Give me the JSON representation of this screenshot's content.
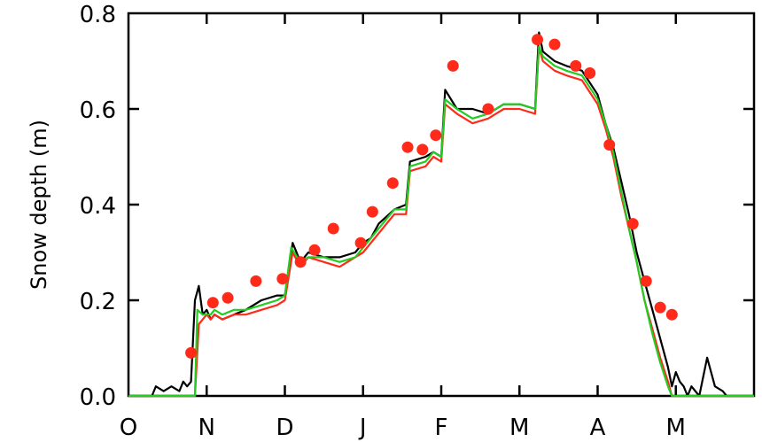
{
  "chart_data": {
    "type": "line",
    "ylabel": "Snow depth  (m)",
    "xlabel": "",
    "ylim": [
      0.0,
      0.8
    ],
    "xlim": [
      0,
      8.0
    ],
    "x_ticks": [
      {
        "value": 0,
        "label": "O"
      },
      {
        "value": 1,
        "label": "N"
      },
      {
        "value": 2,
        "label": "D"
      },
      {
        "value": 3,
        "label": "J"
      },
      {
        "value": 4,
        "label": "F"
      },
      {
        "value": 5,
        "label": "M"
      },
      {
        "value": 6,
        "label": "A"
      },
      {
        "value": 7,
        "label": "M"
      }
    ],
    "y_ticks": [
      {
        "value": 0.0,
        "label": "0.0"
      },
      {
        "value": 0.2,
        "label": "0.2"
      },
      {
        "value": 0.4,
        "label": "0.4"
      },
      {
        "value": 0.6,
        "label": "0.6"
      },
      {
        "value": 0.8,
        "label": "0.8"
      }
    ],
    "series": [
      {
        "color": "#000000",
        "style": "line",
        "x": [
          0.0,
          0.3,
          0.35,
          0.45,
          0.55,
          0.65,
          0.7,
          0.75,
          0.8,
          0.85,
          0.9,
          0.95,
          1.0,
          1.05,
          1.1,
          1.2,
          1.35,
          1.5,
          1.7,
          1.9,
          2.0,
          2.1,
          2.2,
          2.3,
          2.5,
          2.7,
          2.9,
          3.0,
          3.1,
          3.2,
          3.4,
          3.55,
          3.6,
          3.8,
          3.9,
          4.0,
          4.05,
          4.2,
          4.4,
          4.6,
          4.8,
          5.0,
          5.2,
          5.25,
          5.3,
          5.45,
          5.6,
          5.8,
          6.0,
          6.1,
          6.2,
          6.3,
          6.4,
          6.5,
          6.6,
          6.7,
          6.8,
          6.9,
          6.95,
          7.0,
          7.05,
          7.1,
          7.15,
          7.2,
          7.3,
          7.4,
          7.5,
          7.6,
          7.65,
          8.0
        ],
        "y": [
          0.0,
          0.0,
          0.02,
          0.01,
          0.02,
          0.01,
          0.03,
          0.02,
          0.03,
          0.2,
          0.23,
          0.17,
          0.18,
          0.16,
          0.17,
          0.16,
          0.17,
          0.18,
          0.2,
          0.21,
          0.21,
          0.32,
          0.28,
          0.3,
          0.29,
          0.29,
          0.3,
          0.32,
          0.33,
          0.36,
          0.39,
          0.4,
          0.49,
          0.5,
          0.51,
          0.5,
          0.64,
          0.6,
          0.6,
          0.59,
          0.61,
          0.61,
          0.6,
          0.76,
          0.72,
          0.7,
          0.69,
          0.68,
          0.63,
          0.57,
          0.52,
          0.45,
          0.38,
          0.3,
          0.24,
          0.18,
          0.12,
          0.06,
          0.02,
          0.05,
          0.03,
          0.02,
          0.0,
          0.02,
          0.0,
          0.08,
          0.02,
          0.01,
          0.0,
          0.0
        ]
      },
      {
        "color": "#ff2a1a",
        "style": "line",
        "x": [
          0.0,
          0.85,
          0.9,
          0.95,
          1.0,
          1.05,
          1.1,
          1.2,
          1.35,
          1.5,
          1.7,
          1.9,
          2.0,
          2.1,
          2.2,
          2.3,
          2.5,
          2.7,
          2.9,
          3.0,
          3.1,
          3.2,
          3.4,
          3.55,
          3.6,
          3.8,
          3.9,
          4.0,
          4.05,
          4.2,
          4.4,
          4.6,
          4.8,
          5.0,
          5.2,
          5.25,
          5.3,
          5.45,
          5.6,
          5.8,
          6.0,
          6.1,
          6.2,
          6.3,
          6.4,
          6.5,
          6.6,
          6.7,
          6.8,
          6.9,
          6.95,
          7.0,
          8.0
        ],
        "y": [
          0.0,
          0.0,
          0.15,
          0.16,
          0.17,
          0.16,
          0.17,
          0.16,
          0.17,
          0.17,
          0.18,
          0.19,
          0.2,
          0.3,
          0.27,
          0.29,
          0.28,
          0.27,
          0.29,
          0.3,
          0.32,
          0.34,
          0.38,
          0.38,
          0.47,
          0.48,
          0.5,
          0.49,
          0.61,
          0.59,
          0.57,
          0.58,
          0.6,
          0.6,
          0.59,
          0.73,
          0.7,
          0.68,
          0.67,
          0.66,
          0.61,
          0.56,
          0.5,
          0.42,
          0.35,
          0.28,
          0.2,
          0.14,
          0.08,
          0.03,
          0.0,
          0.0,
          0.0
        ]
      },
      {
        "color": "#22cc22",
        "style": "line",
        "x": [
          0.0,
          0.85,
          0.88,
          0.95,
          1.0,
          1.05,
          1.1,
          1.2,
          1.35,
          1.5,
          1.7,
          1.9,
          2.0,
          2.08,
          2.2,
          2.3,
          2.5,
          2.7,
          2.9,
          3.0,
          3.1,
          3.2,
          3.4,
          3.55,
          3.6,
          3.8,
          3.9,
          4.0,
          4.05,
          4.2,
          4.4,
          4.6,
          4.8,
          5.0,
          5.2,
          5.25,
          5.3,
          5.45,
          5.6,
          5.8,
          6.0,
          6.1,
          6.2,
          6.3,
          6.4,
          6.5,
          6.6,
          6.7,
          6.8,
          6.9,
          6.95,
          7.0,
          8.0
        ],
        "y": [
          0.0,
          0.0,
          0.18,
          0.17,
          0.17,
          0.17,
          0.18,
          0.17,
          0.18,
          0.18,
          0.19,
          0.2,
          0.21,
          0.31,
          0.28,
          0.29,
          0.29,
          0.28,
          0.29,
          0.31,
          0.33,
          0.35,
          0.39,
          0.39,
          0.48,
          0.49,
          0.51,
          0.5,
          0.62,
          0.6,
          0.58,
          0.59,
          0.61,
          0.61,
          0.6,
          0.73,
          0.71,
          0.69,
          0.68,
          0.67,
          0.62,
          0.57,
          0.51,
          0.43,
          0.35,
          0.28,
          0.2,
          0.13,
          0.07,
          0.02,
          0.0,
          0.0,
          0.0
        ]
      },
      {
        "color": "#ff2a1a",
        "style": "points",
        "x": [
          0.8,
          1.08,
          1.27,
          1.63,
          1.97,
          2.2,
          2.38,
          2.62,
          2.97,
          3.12,
          3.38,
          3.57,
          3.76,
          3.93,
          4.15,
          4.6,
          5.23,
          5.45,
          5.72,
          5.9,
          6.15,
          6.45,
          6.62,
          6.8,
          6.95
        ],
        "y": [
          0.09,
          0.195,
          0.205,
          0.24,
          0.245,
          0.28,
          0.305,
          0.35,
          0.32,
          0.385,
          0.445,
          0.52,
          0.515,
          0.545,
          0.69,
          0.6,
          0.745,
          0.735,
          0.69,
          0.675,
          0.525,
          0.36,
          0.24,
          0.185,
          0.17
        ]
      }
    ]
  }
}
